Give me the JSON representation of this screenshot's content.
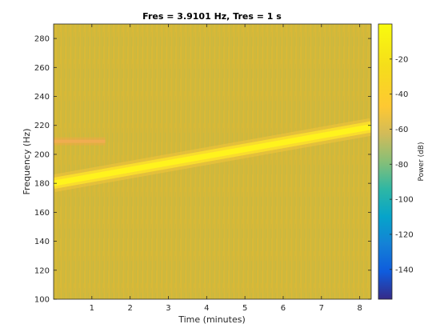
{
  "chart_data": {
    "type": "heatmap",
    "title": "Fres = 3.9101 Hz, Tres = 1 s",
    "xlabel": "Time (minutes)",
    "ylabel": "Frequency (Hz)",
    "xlim": [
      0,
      8.3
    ],
    "ylim": [
      100,
      290
    ],
    "xticks": [
      1,
      2,
      3,
      4,
      5,
      6,
      7,
      8
    ],
    "yticks": [
      100,
      120,
      140,
      160,
      180,
      200,
      220,
      240,
      260,
      280
    ],
    "background_level_db": -35,
    "features": [
      {
        "kind": "chirp",
        "x_start": 0,
        "x_end": 8.3,
        "f_start": 180,
        "f_end": 219,
        "level_db": -5
      },
      {
        "kind": "tone",
        "x_start": 0,
        "x_end": 1.35,
        "f": 209,
        "level_db": -28
      }
    ],
    "colorbar": {
      "label": "Power (dB)",
      "ticks": [
        -20,
        -40,
        -60,
        -80,
        -100,
        -120,
        -140
      ],
      "range": [
        -157,
        0
      ],
      "colormap": "parula"
    }
  }
}
